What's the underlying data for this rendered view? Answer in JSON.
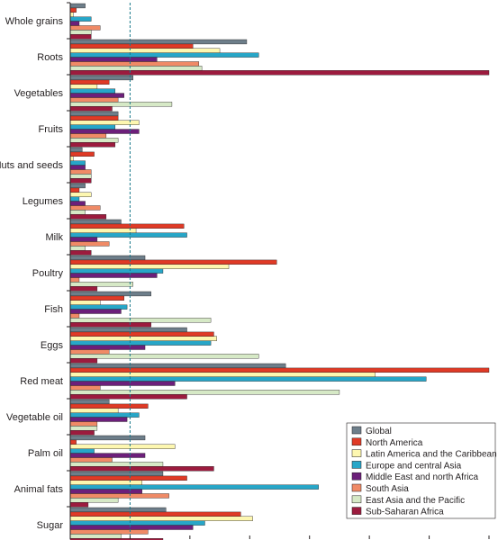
{
  "chart_data": {
    "type": "bar",
    "orientation": "horizontal",
    "title": "",
    "xlabel": "",
    "ylabel": "",
    "xlim": [
      0,
      7
    ],
    "reference_line": 1,
    "grid": false,
    "legend_position": "bottom-right",
    "categories": [
      "Whole grains",
      "Roots",
      "Vegetables",
      "Fruits",
      "Nuts and seeds",
      "Legumes",
      "Milk",
      "Poultry",
      "Fish",
      "Eggs",
      "Red meat",
      "Vegetable oil",
      "Palm oil",
      "Animal fats",
      "Sugar"
    ],
    "series": [
      {
        "name": "Global",
        "color": "#6d7e8a",
        "values": [
          0.25,
          2.95,
          1.05,
          0.8,
          0.2,
          0.25,
          0.85,
          1.25,
          1.35,
          1.95,
          3.6,
          0.65,
          1.25,
          1.55,
          1.6
        ]
      },
      {
        "name": "North America",
        "color": "#e03a26",
        "values": [
          0.1,
          2.05,
          0.65,
          0.8,
          0.4,
          0.15,
          1.9,
          3.45,
          0.9,
          2.4,
          7.0,
          1.3,
          0.1,
          1.95,
          2.85
        ]
      },
      {
        "name": "Latin America and the Caribbean",
        "color": "#fdf7b0",
        "values": [
          0.05,
          2.5,
          0.45,
          1.15,
          0.05,
          0.35,
          1.1,
          2.65,
          0.5,
          2.45,
          5.1,
          0.8,
          1.75,
          1.2,
          3.05
        ]
      },
      {
        "name": "Europe and central Asia",
        "color": "#27a6c8",
        "values": [
          0.35,
          3.15,
          0.75,
          0.75,
          0.25,
          0.15,
          1.95,
          1.55,
          0.95,
          2.35,
          5.95,
          1.15,
          0.4,
          4.15,
          2.25
        ]
      },
      {
        "name": "Middle East and north Africa",
        "color": "#6c1f7a",
        "values": [
          0.15,
          1.45,
          0.9,
          1.15,
          0.25,
          0.25,
          0.45,
          1.45,
          0.85,
          1.25,
          1.75,
          0.95,
          1.25,
          1.2,
          2.05
        ]
      },
      {
        "name": "South Asia",
        "color": "#f08a66",
        "values": [
          0.5,
          2.15,
          0.8,
          0.6,
          0.35,
          0.5,
          0.65,
          0.15,
          0.15,
          0.65,
          0.5,
          0.45,
          0.7,
          1.65,
          1.3
        ]
      },
      {
        "name": "East Asia and the Pacific",
        "color": "#d6e9c6",
        "values": [
          0.35,
          2.2,
          1.7,
          0.8,
          0.35,
          0.25,
          0.25,
          1.05,
          2.35,
          3.15,
          4.5,
          0.45,
          1.55,
          0.8,
          0.85
        ]
      },
      {
        "name": "Sub-Saharan Africa",
        "color": "#9c1b3e",
        "values": [
          0.35,
          7.0,
          0.7,
          0.75,
          0.35,
          0.6,
          0.35,
          0.45,
          1.35,
          0.45,
          1.95,
          0.4,
          2.4,
          0.3,
          1.55
        ]
      }
    ]
  }
}
